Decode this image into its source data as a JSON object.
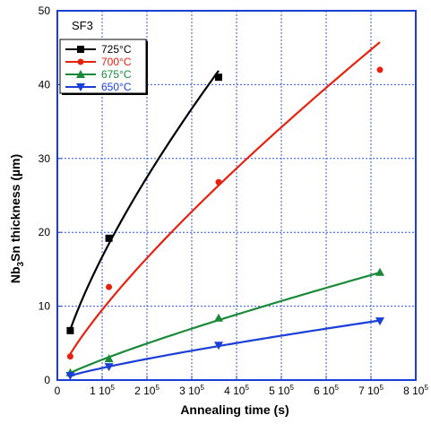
{
  "chart_data": {
    "type": "scatter",
    "annotation": "SF3",
    "xlabel": "Annealing time (s)",
    "ylabel": {
      "prefix": "Nb",
      "sub": "3",
      "suffix": "Sn thickness (µm)"
    },
    "xlim": [
      0,
      800000
    ],
    "ylim": [
      0,
      50
    ],
    "grid": true,
    "legend_position": "top-left",
    "x_ticks": [
      {
        "base": "0",
        "exp": ""
      },
      {
        "base": "1 10",
        "exp": "5"
      },
      {
        "base": "2 10",
        "exp": "5"
      },
      {
        "base": "3 10",
        "exp": "5"
      },
      {
        "base": "4 10",
        "exp": "5"
      },
      {
        "base": "5 10",
        "exp": "5"
      },
      {
        "base": "6 10",
        "exp": "5"
      },
      {
        "base": "7 10",
        "exp": "5"
      },
      {
        "base": "8 10",
        "exp": "5"
      }
    ],
    "y_ticks": [
      "0",
      "10",
      "20",
      "30",
      "40",
      "50"
    ],
    "series": [
      {
        "name": "725°C",
        "color": "#000000",
        "marker": "square",
        "x": [
          28800,
          115200,
          360000
        ],
        "y": [
          6.7,
          19.2,
          41.0
        ]
      },
      {
        "name": "700°C",
        "color": "#e8210f",
        "marker": "circle",
        "x": [
          28800,
          115200,
          360000,
          720000
        ],
        "y": [
          3.2,
          12.6,
          26.8,
          42.0
        ]
      },
      {
        "name": "675°C",
        "color": "#1a8a3a",
        "marker": "triangle-up",
        "x": [
          28800,
          115200,
          360000,
          720000
        ],
        "y": [
          1.0,
          2.9,
          8.4,
          14.6
        ]
      },
      {
        "name": "650°C",
        "color": "#1a3fd8",
        "marker": "triangle-down",
        "x": [
          28800,
          115200,
          360000,
          720000
        ],
        "y": [
          0.6,
          1.8,
          4.7,
          8.0
        ]
      }
    ]
  }
}
